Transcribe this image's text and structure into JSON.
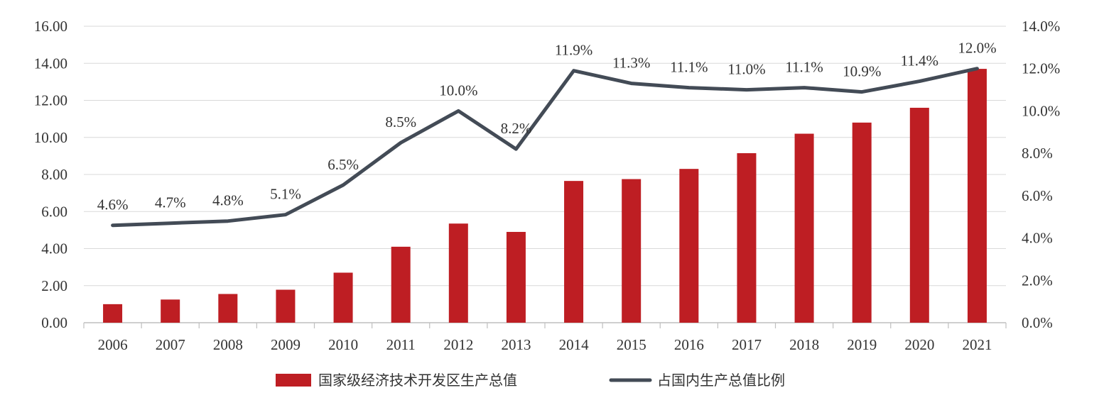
{
  "chart_data": {
    "type": "bar+line",
    "categories": [
      "2006",
      "2007",
      "2008",
      "2009",
      "2010",
      "2011",
      "2012",
      "2013",
      "2014",
      "2015",
      "2016",
      "2017",
      "2018",
      "2019",
      "2020",
      "2021"
    ],
    "series": [
      {
        "name": "国家级经济技术开发区生产总值",
        "type": "bar",
        "axis": "left",
        "values": [
          1.0,
          1.25,
          1.55,
          1.78,
          2.7,
          4.1,
          5.35,
          4.9,
          7.65,
          7.75,
          8.3,
          9.15,
          10.2,
          10.8,
          11.6,
          13.7
        ]
      },
      {
        "name": "占国内生产总值比例",
        "type": "line",
        "axis": "right",
        "values": [
          4.6,
          4.7,
          4.8,
          5.1,
          6.5,
          8.5,
          10.0,
          8.2,
          11.9,
          11.3,
          11.1,
          11.0,
          11.1,
          10.9,
          11.4,
          12.0
        ],
        "labels": [
          "4.6%",
          "4.7%",
          "4.8%",
          "5.1%",
          "6.5%",
          "8.5%",
          "10.0%",
          "8.2%",
          "11.9%",
          "11.3%",
          "11.1%",
          "11.0%",
          "11.1%",
          "10.9%",
          "11.4%",
          "12.0%"
        ]
      }
    ],
    "y_left": {
      "ylim": [
        0,
        16
      ],
      "ticks": [
        "0.00",
        "2.00",
        "4.00",
        "6.00",
        "8.00",
        "10.00",
        "12.00",
        "14.00",
        "16.00"
      ]
    },
    "y_right": {
      "ylim": [
        0,
        14
      ],
      "ticks": [
        "0.0%",
        "2.0%",
        "4.0%",
        "6.0%",
        "8.0%",
        "10.0%",
        "12.0%",
        "14.0%"
      ]
    },
    "grid": true,
    "legend_position": "bottom-center",
    "colors": {
      "bar": "#BE1E23",
      "line": "#434B56",
      "grid": "#D9D9D9",
      "axis": "#BFBFBF"
    }
  }
}
